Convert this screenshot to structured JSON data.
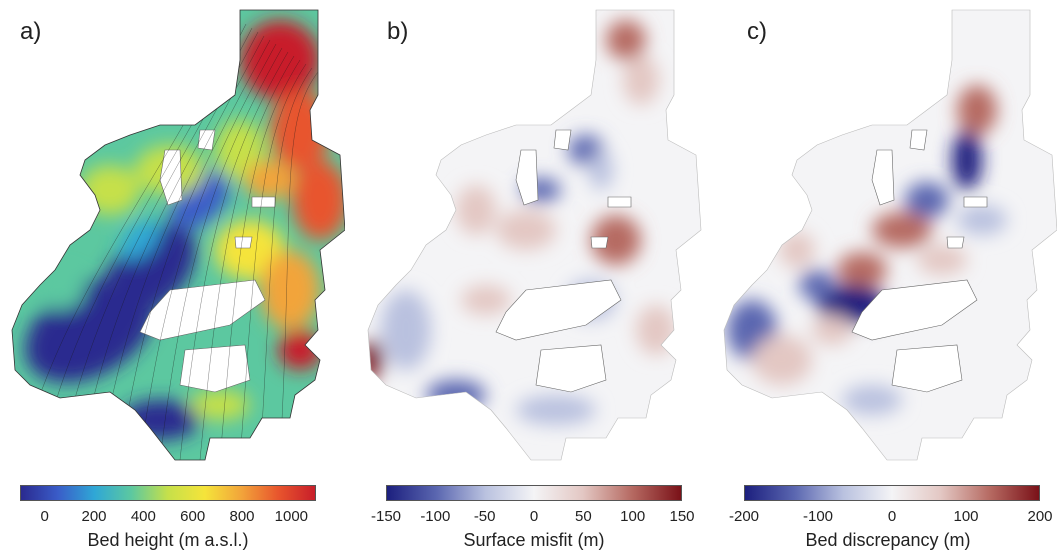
{
  "chart_data": [
    {
      "type": "heatmap",
      "panel_label": "a)",
      "colorbar_title": "Bed height (m a.s.l.)",
      "colormap": "jet",
      "range": [
        -100,
        1100
      ],
      "tick_labels": [
        "0",
        "200",
        "400",
        "600",
        "800",
        "1000"
      ],
      "tick_values": [
        0,
        200,
        400,
        600,
        800,
        1000
      ]
    },
    {
      "type": "heatmap",
      "panel_label": "b)",
      "colorbar_title": "Surface misfit (m)",
      "colormap": "diverging blue-white-red",
      "range": [
        -150,
        150
      ],
      "tick_labels": [
        "-150",
        "-100",
        "-50",
        "0",
        "50",
        "100",
        "150"
      ],
      "tick_values": [
        -150,
        -100,
        -50,
        0,
        50,
        100,
        150
      ]
    },
    {
      "type": "heatmap",
      "panel_label": "c)",
      "colorbar_title": "Bed discrepancy (m)",
      "colormap": "diverging blue-white-red",
      "range": [
        -200,
        200
      ],
      "tick_labels": [
        "-200",
        "-100",
        "0",
        "100",
        "200"
      ],
      "tick_values": [
        -200,
        -100,
        0,
        100,
        200
      ]
    }
  ],
  "colors": {
    "jet": [
      "#2a2a8f",
      "#3a5cc8",
      "#2fa7d6",
      "#5cc8a0",
      "#c6e04a",
      "#f5e43a",
      "#f2a43a",
      "#e8552d",
      "#c81e2a"
    ],
    "diverging": [
      "#1c1f7e",
      "#5a66b0",
      "#b9c1df",
      "#f4f4f6",
      "#e3c7c3",
      "#b66a62",
      "#7a1118"
    ]
  }
}
